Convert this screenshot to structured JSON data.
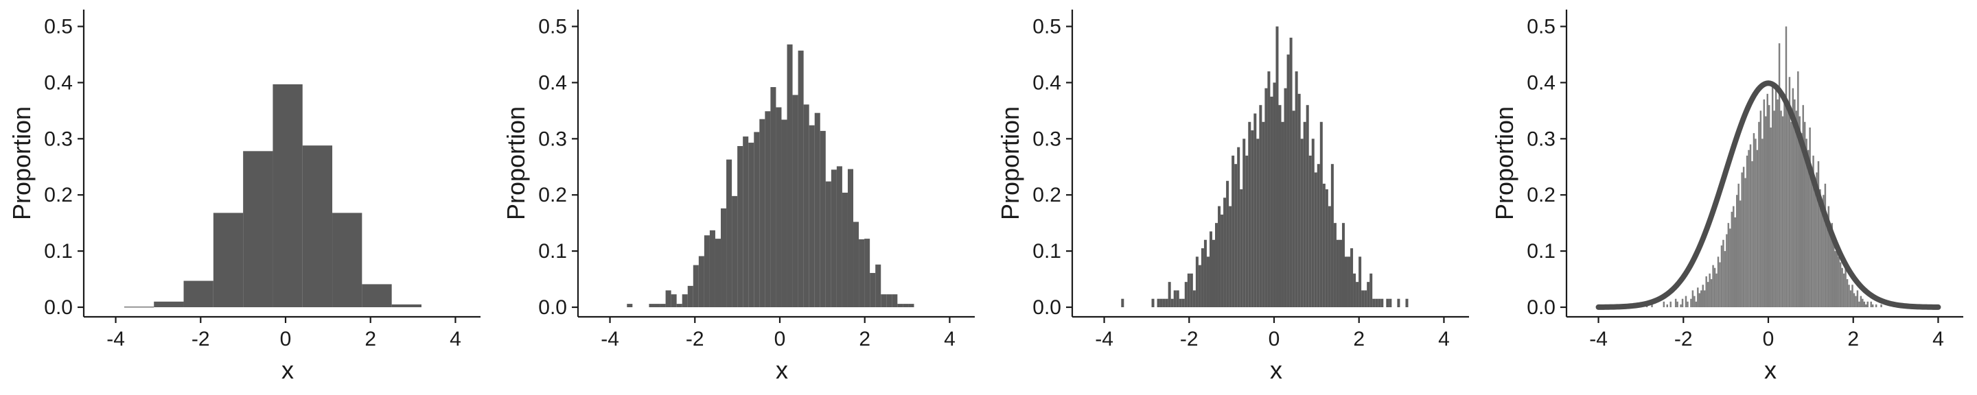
{
  "chart_data": [
    {
      "type": "bar",
      "xlabel": "x",
      "ylabel": "Proportion",
      "xlim": [
        -4.3,
        4.3
      ],
      "ylim": [
        -0.02,
        0.53
      ],
      "x_ticks": [
        "-4",
        "-2",
        "0",
        "2",
        "4"
      ],
      "y_ticks": [
        "0.0",
        "0.1",
        "0.2",
        "0.3",
        "0.4",
        "0.5"
      ],
      "bar_color": "#595959",
      "bins": [
        {
          "x0": -3.8,
          "x1": -3.1,
          "value": 0.001
        },
        {
          "x0": -3.1,
          "x1": -2.4,
          "value": 0.01
        },
        {
          "x0": -2.4,
          "x1": -1.7,
          "value": 0.047
        },
        {
          "x0": -1.7,
          "x1": -1.0,
          "value": 0.168
        },
        {
          "x0": -1.0,
          "x1": -0.3,
          "value": 0.278
        },
        {
          "x0": -0.3,
          "x1": 0.4,
          "value": 0.397
        },
        {
          "x0": 0.4,
          "x1": 1.1,
          "value": 0.288
        },
        {
          "x0": 1.1,
          "x1": 1.8,
          "value": 0.168
        },
        {
          "x0": 1.8,
          "x1": 2.5,
          "value": 0.041
        },
        {
          "x0": 2.5,
          "x1": 3.2,
          "value": 0.005
        }
      ]
    },
    {
      "type": "bar",
      "xlabel": "x",
      "ylabel": "Proportion",
      "xlim": [
        -4.3,
        4.3
      ],
      "ylim": [
        -0.02,
        0.53
      ],
      "x_ticks": [
        "-4",
        "-2",
        "0",
        "2",
        "4"
      ],
      "y_ticks": [
        "0.0",
        "0.1",
        "0.2",
        "0.3",
        "0.4",
        "0.5"
      ],
      "bar_color": "#595959",
      "bin_start": -3.6,
      "bin_width": 0.13,
      "values": [
        0.006,
        0,
        0,
        0,
        0.006,
        0.006,
        0.006,
        0.03,
        0.023,
        0.006,
        0.023,
        0.038,
        0.075,
        0.091,
        0.128,
        0.137,
        0.122,
        0.176,
        0.263,
        0.198,
        0.287,
        0.304,
        0.293,
        0.312,
        0.335,
        0.349,
        0.392,
        0.356,
        0.334,
        0.468,
        0.378,
        0.457,
        0.361,
        0.324,
        0.346,
        0.314,
        0.224,
        0.245,
        0.251,
        0.204,
        0.246,
        0.152,
        0.121,
        0.122,
        0.061,
        0.076,
        0.023,
        0.023,
        0.023,
        0.006,
        0.006,
        0.006
      ]
    },
    {
      "type": "bar",
      "xlabel": "x",
      "ylabel": "Proportion",
      "xlim": [
        -4.3,
        4.3
      ],
      "ylim": [
        -0.02,
        0.53
      ],
      "x_ticks": [
        "-4",
        "-2",
        "0",
        "2",
        "4"
      ],
      "y_ticks": [
        "0.0",
        "0.1",
        "0.2",
        "0.3",
        "0.4",
        "0.5"
      ],
      "bar_color": "#595959",
      "bin_start": -3.6,
      "bin_width": 0.065,
      "values": [
        0.015,
        0,
        0,
        0,
        0,
        0,
        0,
        0,
        0,
        0,
        0,
        0.015,
        0,
        0.015,
        0.015,
        0.015,
        0.015,
        0.045,
        0.015,
        0.03,
        0.03,
        0.015,
        0.015,
        0.045,
        0.06,
        0.06,
        0.03,
        0.09,
        0.075,
        0.105,
        0.12,
        0.09,
        0.135,
        0.12,
        0.15,
        0.18,
        0.165,
        0.195,
        0.225,
        0.18,
        0.27,
        0.255,
        0.285,
        0.21,
        0.3,
        0.27,
        0.33,
        0.315,
        0.345,
        0.3,
        0.36,
        0.33,
        0.39,
        0.42,
        0.375,
        0.4,
        0.5,
        0.36,
        0.33,
        0.39,
        0.45,
        0.48,
        0.35,
        0.42,
        0.38,
        0.3,
        0.33,
        0.36,
        0.27,
        0.3,
        0.24,
        0.255,
        0.33,
        0.22,
        0.21,
        0.18,
        0.255,
        0.15,
        0.12,
        0.12,
        0.15,
        0.09,
        0.09,
        0.105,
        0.06,
        0.045,
        0.09,
        0.03,
        0.03,
        0.045,
        0.06,
        0.015,
        0.015,
        0.015,
        0.015,
        0,
        0.015,
        0.015,
        0,
        0,
        0.015,
        0,
        0,
        0.015
      ]
    },
    {
      "type": "bar",
      "xlabel": "x",
      "ylabel": "Proportion",
      "xlim": [
        -4.3,
        4.3
      ],
      "ylim": [
        -0.02,
        0.53
      ],
      "x_ticks": [
        "-4",
        "-2",
        "0",
        "2",
        "4"
      ],
      "y_ticks": [
        "0.0",
        "0.1",
        "0.2",
        "0.3",
        "0.4",
        "0.5"
      ],
      "bar_color": "#7f7f7f",
      "curve_color": "#4d4d4d",
      "curve": "normal density, mean 0, sd 1",
      "bin_start": -4.0,
      "bin_width": 0.04,
      "values": [
        0.005,
        0,
        0,
        0,
        0,
        0,
        0,
        0,
        0,
        0,
        0,
        0,
        0,
        0,
        0,
        0,
        0,
        0,
        0,
        0,
        0.005,
        0,
        0,
        0,
        0,
        0,
        0,
        0,
        0.01,
        0,
        0,
        0.005,
        0,
        0,
        0,
        0,
        0,
        0,
        0.01,
        0,
        0.005,
        0,
        0.01,
        0,
        0,
        0.015,
        0.01,
        0,
        0.005,
        0.015,
        0,
        0.02,
        0.01,
        0,
        0.015,
        0.03,
        0.02,
        0.01,
        0.035,
        0.025,
        0.03,
        0.04,
        0.03,
        0.055,
        0.045,
        0.06,
        0.05,
        0.075,
        0.07,
        0.06,
        0.09,
        0.08,
        0.11,
        0.12,
        0.1,
        0.13,
        0.15,
        0.14,
        0.17,
        0.18,
        0.16,
        0.2,
        0.22,
        0.19,
        0.24,
        0.25,
        0.23,
        0.27,
        0.28,
        0.29,
        0.26,
        0.31,
        0.3,
        0.28,
        0.33,
        0.35,
        0.3,
        0.37,
        0.34,
        0.38,
        0.36,
        0.32,
        0.4,
        0.35,
        0.39,
        0.37,
        0.47,
        0.35,
        0.34,
        0.38,
        0.5,
        0.36,
        0.41,
        0.33,
        0.39,
        0.37,
        0.35,
        0.42,
        0.34,
        0.31,
        0.36,
        0.33,
        0.3,
        0.28,
        0.32,
        0.25,
        0.27,
        0.22,
        0.24,
        0.26,
        0.21,
        0.18,
        0.2,
        0.22,
        0.16,
        0.18,
        0.13,
        0.15,
        0.12,
        0.1,
        0.11,
        0.09,
        0.08,
        0.07,
        0.06,
        0.07,
        0.05,
        0.04,
        0.03,
        0.04,
        0.025,
        0.02,
        0.03,
        0.01,
        0.02,
        0.015,
        0.01,
        0.005,
        0.01,
        0,
        0.01,
        0.005,
        0,
        0.005,
        0,
        0,
        0.005,
        0,
        0,
        0,
        0,
        0,
        0,
        0,
        0,
        0,
        0,
        0,
        0,
        0,
        0,
        0,
        0,
        0,
        0,
        0,
        0,
        0,
        0,
        0,
        0,
        0,
        0,
        0,
        0,
        0
      ]
    }
  ]
}
